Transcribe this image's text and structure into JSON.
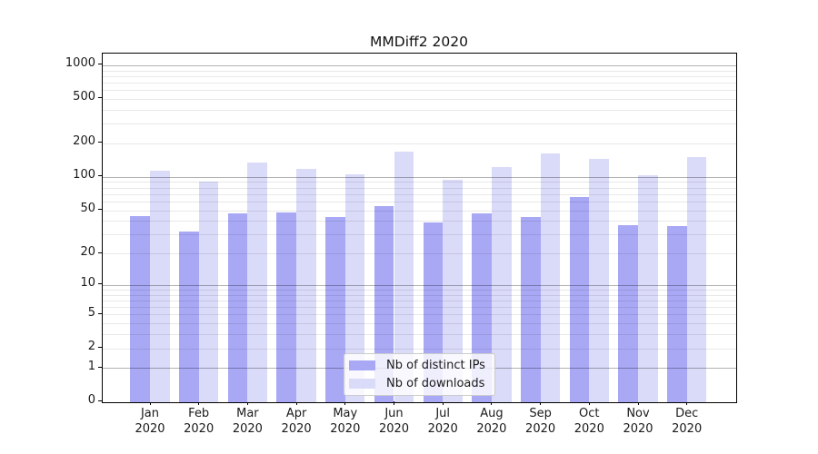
{
  "title": "MMDiff2 2020",
  "colors": {
    "bar_ips": "#a8a8f5",
    "bar_downloads": "#dadaf9",
    "grid_major": "rgba(0,0,0,0.30)",
    "grid_minor": "rgba(0,0,0,0.09)",
    "axis_frame": "#000000",
    "legend_border": "#cccccc",
    "legend_background": "rgba(255,255,255,0.8)",
    "text": "#1a1a1a"
  },
  "y_axis": {
    "tick_labels": [
      "0",
      "1",
      "2",
      "5",
      "10",
      "20",
      "50",
      "100",
      "200",
      "500",
      "1000"
    ],
    "tick_values": [
      0,
      1,
      2,
      5,
      10,
      20,
      50,
      100,
      200,
      500,
      1000
    ],
    "grid_major_values": [
      1,
      10,
      100,
      1000
    ],
    "grid_minor_values": [
      2,
      3,
      4,
      5,
      6,
      7,
      8,
      9,
      20,
      30,
      40,
      50,
      60,
      70,
      80,
      90,
      200,
      300,
      400,
      500,
      600,
      700,
      800,
      900
    ]
  },
  "x_axis": {
    "months": [
      "Jan",
      "Feb",
      "Mar",
      "Apr",
      "May",
      "Jun",
      "Jul",
      "Aug",
      "Sep",
      "Oct",
      "Nov",
      "Dec"
    ],
    "year": "2020"
  },
  "legend": {
    "items": [
      {
        "label": "Nb of distinct IPs",
        "series": "ips"
      },
      {
        "label": "Nb of downloads",
        "series": "downloads"
      }
    ]
  },
  "chart_data": {
    "type": "bar",
    "title": "MMDiff2 2020",
    "categories": [
      "Jan 2020",
      "Feb 2020",
      "Mar 2020",
      "Apr 2020",
      "May 2020",
      "Jun 2020",
      "Jul 2020",
      "Aug 2020",
      "Sep 2020",
      "Oct 2020",
      "Nov 2020",
      "Dec 2020"
    ],
    "series": [
      {
        "name": "Nb of distinct IPs",
        "color": "#a8a8f5",
        "values": [
          45,
          32,
          47,
          48,
          44,
          55,
          39,
          47,
          44,
          66,
          37,
          36
        ]
      },
      {
        "name": "Nb of downloads",
        "color": "#dadaf9",
        "values": [
          116,
          91,
          135,
          120,
          106,
          171,
          96,
          124,
          165,
          147,
          105,
          153
        ]
      }
    ],
    "xlabel": "",
    "ylabel": "",
    "y_scale": "log10(1+y)",
    "y_ticks": [
      0,
      1,
      2,
      5,
      10,
      20,
      50,
      100,
      200,
      500,
      1000
    ],
    "ylim": [
      0,
      1250
    ],
    "grid": true,
    "legend_position": "lower center"
  }
}
